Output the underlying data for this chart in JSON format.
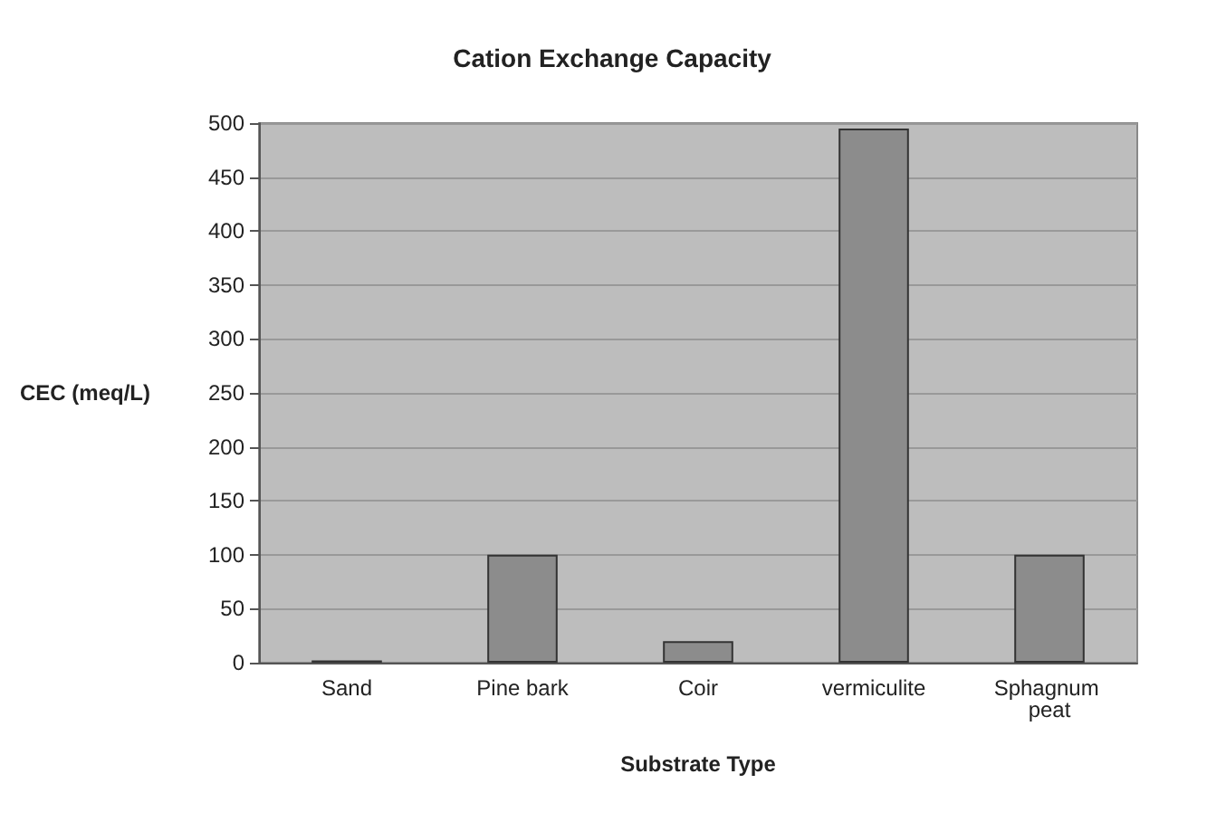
{
  "chart_data": {
    "type": "bar",
    "title": "Cation Exchange Capacity",
    "xlabel": "Substrate Type",
    "ylabel": "CEC (meq/L)",
    "categories": [
      "Sand",
      "Pine bark",
      "Coir",
      "vermiculite",
      "Sphagnum peat"
    ],
    "values": [
      2,
      100,
      20,
      495,
      100
    ],
    "color": "#8c8c8c",
    "ylim": [
      0,
      500
    ],
    "yticks": [
      0,
      50,
      100,
      150,
      200,
      250,
      300,
      350,
      400,
      450,
      500
    ],
    "grid": "y"
  }
}
